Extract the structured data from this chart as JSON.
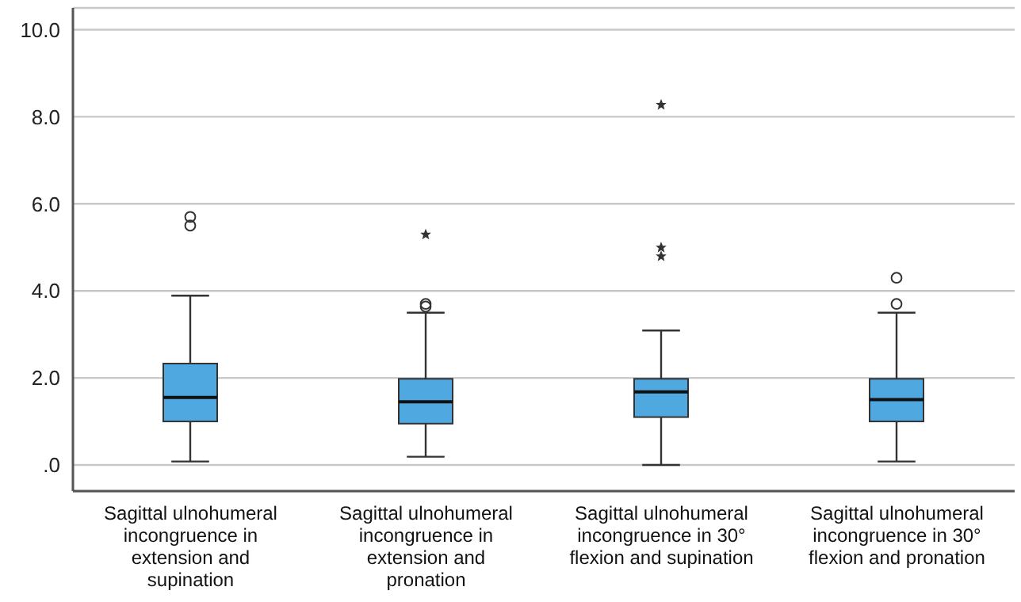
{
  "chart_data": {
    "type": "box",
    "categories": [
      "Sagittal ulnohumeral incongruence in extension and supination",
      "Sagittal ulnohumeral incongruence in extension and pronation",
      "Sagittal ulnohumeral incongruence in 30° flexion and supination",
      "Sagittal ulnohumeral incongruence in 30° flexion and pronation"
    ],
    "color": "#4fa8e0",
    "boxes": [
      {
        "low": 0.08,
        "q1": 1.0,
        "median": 1.55,
        "q3": 2.33,
        "high": 3.89,
        "outliers": [
          5.5,
          5.7
        ]
      },
      {
        "low": 0.19,
        "q1": 0.95,
        "median": 1.45,
        "q3": 1.98,
        "high": 3.5,
        "outliers": [
          3.64,
          3.7,
          5.3
        ]
      },
      {
        "low": 0.0,
        "q1": 1.1,
        "median": 1.68,
        "q3": 1.98,
        "high": 3.09,
        "outliers": [
          4.8,
          5.0,
          8.28
        ]
      },
      {
        "low": 0.08,
        "q1": 1.0,
        "median": 1.5,
        "q3": 1.98,
        "high": 3.5,
        "outliers": [
          3.7,
          4.3
        ]
      }
    ],
    "ylim": [
      -0.6,
      10.5
    ],
    "yticks": [
      {
        "value": 0,
        "label": ".0"
      },
      {
        "value": 2,
        "label": "2.0"
      },
      {
        "value": 4,
        "label": "4.0"
      },
      {
        "value": 6,
        "label": "6.0"
      },
      {
        "value": 8,
        "label": "8.0"
      },
      {
        "value": 10,
        "label": "10.0"
      }
    ],
    "grid": "y"
  }
}
